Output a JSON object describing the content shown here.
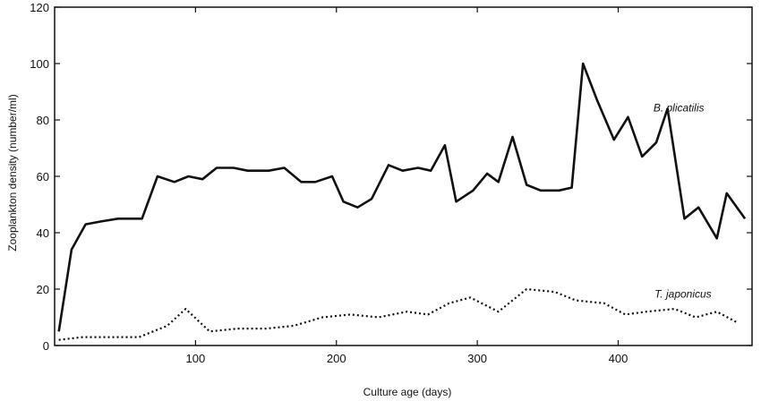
{
  "chart_data": {
    "type": "line",
    "title": "",
    "xlabel": "Culture age (days)",
    "ylabel": "Zooplankton density (number/ml)",
    "xlim": [
      0,
      495
    ],
    "ylim": [
      0,
      120
    ],
    "xticks": [
      100,
      200,
      300,
      400
    ],
    "yticks": [
      0,
      20,
      40,
      60,
      80,
      100,
      120
    ],
    "grid": false,
    "series": [
      {
        "name": "B. plicatilis",
        "style": "solid",
        "x": [
          3,
          12,
          22,
          33,
          45,
          62,
          73,
          85,
          95,
          105,
          115,
          127,
          137,
          152,
          163,
          175,
          185,
          197,
          205,
          215,
          225,
          237,
          247,
          258,
          267,
          277,
          285,
          297,
          307,
          315,
          325,
          335,
          345,
          358,
          367,
          375,
          385,
          397,
          407,
          417,
          427,
          435,
          447,
          457,
          470,
          477,
          490
        ],
        "y": [
          5,
          34,
          43,
          44,
          45,
          45,
          60,
          58,
          60,
          59,
          63,
          63,
          62,
          62,
          63,
          58,
          58,
          60,
          51,
          49,
          52,
          64,
          62,
          63,
          62,
          71,
          51,
          55,
          61,
          58,
          74,
          57,
          55,
          55,
          56,
          100,
          87,
          73,
          81,
          67,
          72,
          84,
          45,
          49,
          38,
          54,
          45
        ]
      },
      {
        "name": "T. japonicus",
        "style": "dotted",
        "x": [
          3,
          20,
          40,
          60,
          80,
          93,
          110,
          130,
          150,
          170,
          190,
          210,
          230,
          250,
          265,
          280,
          295,
          315,
          335,
          355,
          370,
          390,
          405,
          420,
          440,
          455,
          470,
          485
        ],
        "y": [
          2,
          3,
          3,
          3,
          7,
          13,
          5,
          6,
          6,
          7,
          10,
          11,
          10,
          12,
          11,
          15,
          17,
          12,
          20,
          19,
          16,
          15,
          11,
          12,
          13,
          10,
          12,
          8
        ]
      }
    ]
  }
}
